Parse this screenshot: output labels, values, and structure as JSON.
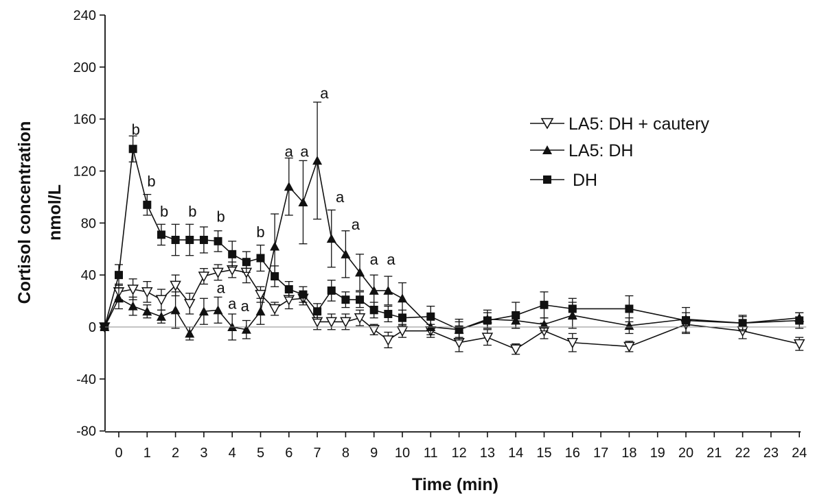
{
  "chart_data": {
    "type": "line",
    "xlabel": "Time (min)",
    "ylabel_line1": "Cortisol concentration",
    "ylabel_line2": "nmol/L",
    "ylim": [
      -80,
      240
    ],
    "yticks": [
      240,
      200,
      160,
      120,
      80,
      40,
      0,
      -40,
      -80
    ],
    "xlim": [
      -0.5,
      24
    ],
    "xticks": [
      0,
      1,
      2,
      3,
      4,
      5,
      6,
      7,
      8,
      9,
      10,
      11,
      12,
      13,
      14,
      15,
      16,
      17,
      18,
      19,
      20,
      21,
      22,
      23,
      24
    ],
    "zero_line": true,
    "legend_placement": "top-right",
    "series": [
      {
        "name": "LA5: DH + cautery",
        "marker": "open-triangle-down",
        "x": [
          -0.5,
          0,
          0.5,
          1,
          1.5,
          2,
          2.5,
          3,
          3.5,
          4,
          4.5,
          5,
          5.5,
          6,
          6.5,
          7,
          7.5,
          8,
          8.5,
          9,
          9.5,
          10,
          11,
          12,
          13,
          14,
          15,
          16,
          18,
          20,
          22,
          24
        ],
        "y": [
          0,
          27,
          29,
          27,
          21,
          32,
          18,
          39,
          42,
          44,
          42,
          25,
          14,
          21,
          22,
          4,
          4,
          4,
          7,
          -2,
          -10,
          -3,
          -3,
          -12,
          -8,
          -17,
          -3,
          -12,
          -15,
          2,
          -3,
          -13
        ],
        "err": [
          2,
          6,
          8,
          8,
          8,
          8,
          8,
          6,
          6,
          6,
          8,
          6,
          5,
          7,
          5,
          6,
          6,
          6,
          6,
          4,
          6,
          5,
          5,
          7,
          6,
          4,
          6,
          7,
          4,
          6,
          6,
          5
        ]
      },
      {
        "name": "LA5: DH",
        "marker": "filled-triangle-up",
        "x": [
          -0.5,
          0,
          0.5,
          1,
          1.5,
          2,
          2.5,
          3,
          3.5,
          4,
          4.5,
          5,
          5.5,
          6,
          6.5,
          7,
          7.5,
          8,
          8.5,
          9,
          9.5,
          10,
          11,
          12,
          13,
          14,
          15,
          16,
          18,
          20,
          22,
          24
        ],
        "y": [
          0,
          22,
          16,
          12,
          8,
          13,
          -5,
          12,
          13,
          0,
          -2,
          12,
          62,
          108,
          96,
          128,
          68,
          56,
          42,
          28,
          28,
          22,
          0,
          -2,
          6,
          5,
          2,
          9,
          1,
          6,
          3,
          7
        ],
        "err": [
          2,
          8,
          7,
          5,
          5,
          14,
          5,
          10,
          10,
          10,
          7,
          10,
          25,
          22,
          32,
          45,
          22,
          18,
          14,
          12,
          11,
          12,
          6,
          8,
          7,
          6,
          5,
          10,
          6,
          5,
          5,
          4
        ]
      },
      {
        "name": "DH",
        "marker": "filled-square",
        "x": [
          -0.5,
          0,
          0.5,
          1,
          1.5,
          2,
          2.5,
          3,
          3.5,
          4,
          4.5,
          5,
          5.5,
          6,
          6.5,
          7,
          7.5,
          8,
          8.5,
          9,
          9.5,
          10,
          11,
          12,
          13,
          14,
          15,
          16,
          18,
          20,
          22,
          24
        ],
        "y": [
          0,
          40,
          137,
          94,
          71,
          67,
          67,
          67,
          66,
          56,
          50,
          53,
          39,
          29,
          25,
          12,
          28,
          21,
          21,
          13,
          10,
          7,
          8,
          -2,
          5,
          9,
          17,
          14,
          14,
          5,
          3,
          5
        ],
        "err": [
          2,
          8,
          10,
          8,
          8,
          12,
          12,
          10,
          8,
          10,
          8,
          10,
          8,
          6,
          6,
          6,
          8,
          6,
          6,
          6,
          6,
          6,
          8,
          6,
          6,
          10,
          10,
          8,
          10,
          10,
          6,
          6
        ]
      }
    ],
    "annotations": [
      {
        "text": "b",
        "x": 0.6,
        "y": 148
      },
      {
        "text": "b",
        "x": 1.15,
        "y": 108
      },
      {
        "text": "b",
        "x": 1.6,
        "y": 85
      },
      {
        "text": "b",
        "x": 2.6,
        "y": 85
      },
      {
        "text": "b",
        "x": 3.6,
        "y": 81
      },
      {
        "text": "b",
        "x": 5.0,
        "y": 69
      },
      {
        "text": "a",
        "x": 7.25,
        "y": 176
      },
      {
        "text": "a",
        "x": 6.0,
        "y": 131
      },
      {
        "text": "a",
        "x": 6.55,
        "y": 131
      },
      {
        "text": "a",
        "x": 7.8,
        "y": 96
      },
      {
        "text": "a",
        "x": 8.35,
        "y": 75
      },
      {
        "text": "a",
        "x": 9.0,
        "y": 48
      },
      {
        "text": "a",
        "x": 9.6,
        "y": 48
      },
      {
        "text": "a",
        "x": 3.6,
        "y": 26
      },
      {
        "text": "a",
        "x": 4.0,
        "y": 14
      },
      {
        "text": "a",
        "x": 4.45,
        "y": 12
      }
    ]
  }
}
